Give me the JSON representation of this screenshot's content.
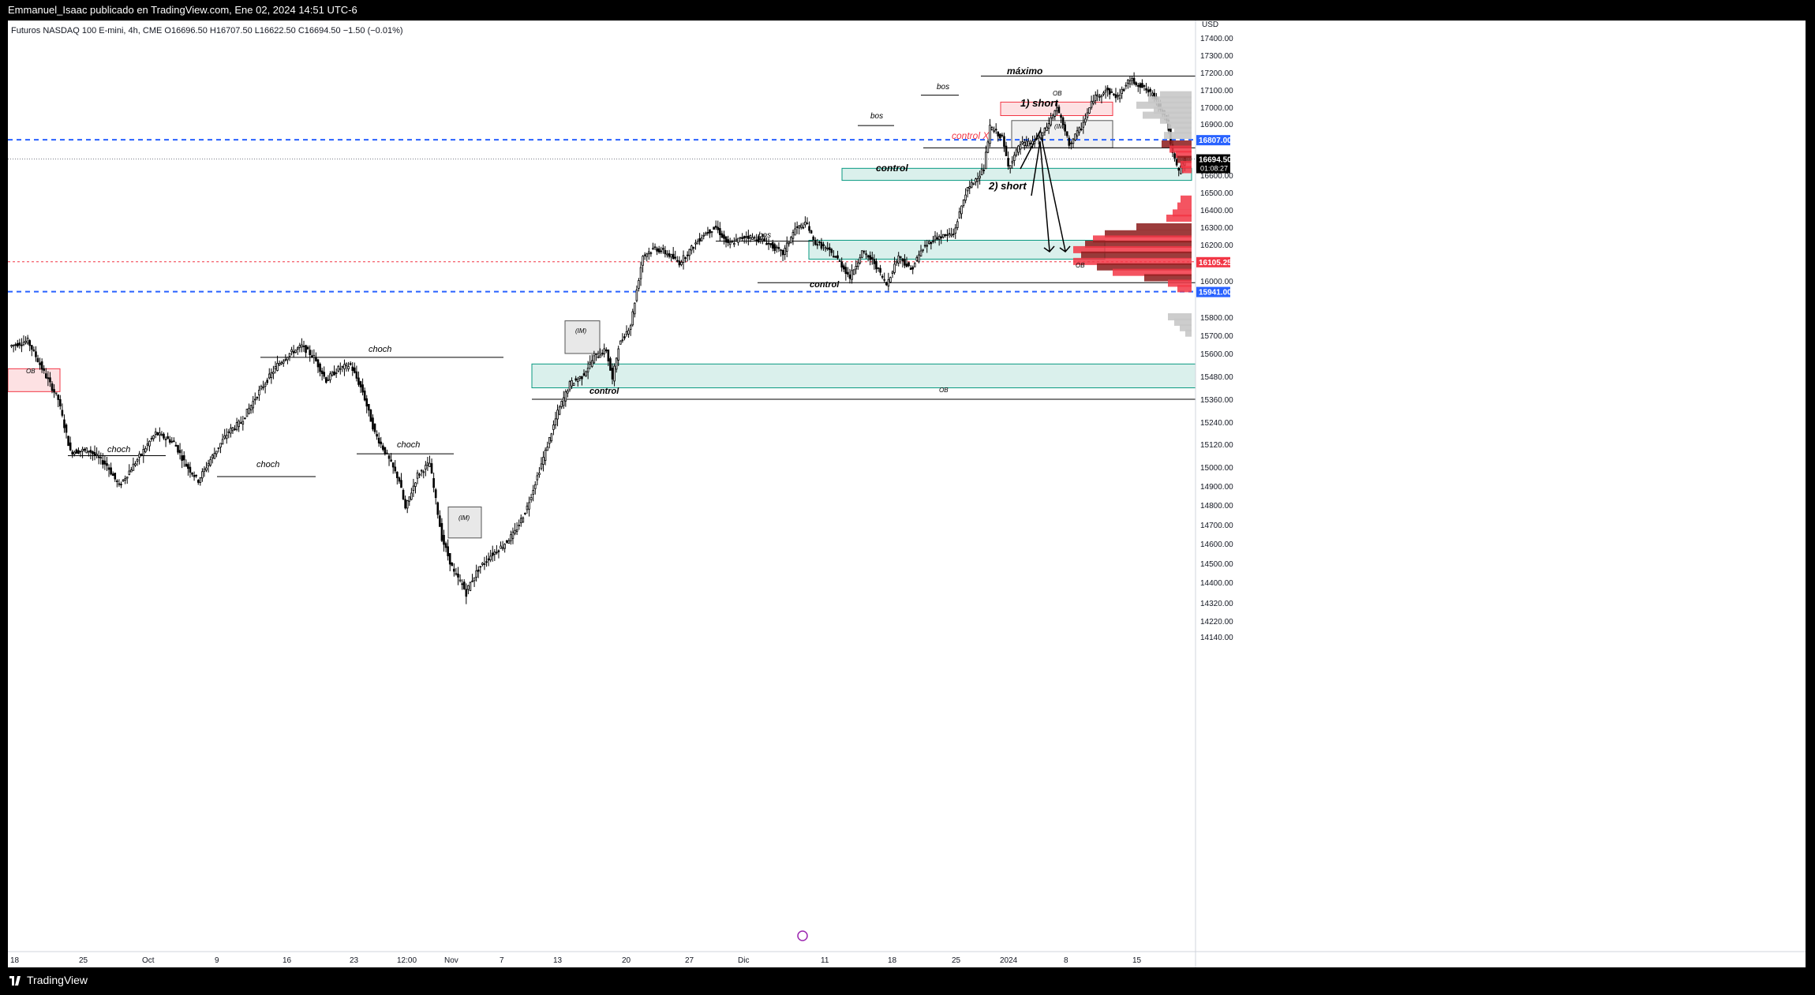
{
  "header": {
    "published_by": "Emmanuel_Isaac publicado en TradingView.com, Ene 02, 2024 14:51 UTC-6",
    "instrument": "Futuros NASDAQ 100 E-mini, 4h, CME",
    "ohlc": "O16696.50  H16707.50  L16622.50  C16694.50  −1.50 (−0.01%)"
  },
  "footer": {
    "brand": "TradingView"
  },
  "chart_data": {
    "type": "candlestick",
    "y_currency": "USD",
    "ylim": [
      14080,
      17520
    ],
    "y_ticks": [
      17400,
      17300,
      17200,
      17100,
      17000,
      16900,
      16600,
      16500,
      16400,
      16300,
      16200,
      16000,
      15800,
      15700,
      15600,
      15480,
      15360,
      15240,
      15120,
      15000,
      14900,
      14800,
      14700,
      14600,
      14500,
      14400,
      14320,
      14220,
      14140
    ],
    "y_tick_labels": [
      "17400.00",
      "17300.00",
      "17200.00",
      "17100.00",
      "17000.00",
      "16900.00",
      "16600.00",
      "16500.00",
      "16400.00",
      "16300.00",
      "16200.00",
      "16000.00",
      "15800.00",
      "15700.00",
      "15600.00",
      "15480.00",
      "15360.00",
      "15240.00",
      "15120.00",
      "15000.00",
      "14900.00",
      "14800.00",
      "14700.00",
      "14600.00",
      "14500.00",
      "14400.00",
      "14320.00",
      "14220.00",
      "14140.00"
    ],
    "x_labels": [
      "18",
      "25",
      "Oct",
      "9",
      "16",
      "23",
      "12:00",
      "Nov",
      "7",
      "13",
      "20",
      "27",
      "Dic",
      "11",
      "18",
      "25",
      "2024",
      "8",
      "15"
    ],
    "price_labels": [
      {
        "value": 16807.0,
        "text": "16807.00",
        "color": "#2962ff"
      },
      {
        "value": 16694.5,
        "text": "16694.50",
        "countdown": "01:08:27",
        "color": "#000000"
      },
      {
        "value": 16105.25,
        "text": "16105.25",
        "color": "#f23645"
      },
      {
        "value": 15941.0,
        "text": "15941.00",
        "color": "#2962ff"
      }
    ],
    "path": [
      [
        0,
        15640
      ],
      [
        3,
        15670
      ],
      [
        6,
        15480
      ],
      [
        8,
        15360
      ],
      [
        10,
        15080
      ],
      [
        13,
        15090
      ],
      [
        16,
        15010
      ],
      [
        18,
        14900
      ],
      [
        21,
        15040
      ],
      [
        24,
        15180
      ],
      [
        27,
        15130
      ],
      [
        29,
        15010
      ],
      [
        31,
        14930
      ],
      [
        33,
        15040
      ],
      [
        36,
        15190
      ],
      [
        38,
        15240
      ],
      [
        41,
        15400
      ],
      [
        44,
        15540
      ],
      [
        46,
        15600
      ],
      [
        48,
        15640
      ],
      [
        50,
        15580
      ],
      [
        52,
        15460
      ],
      [
        54,
        15520
      ],
      [
        56,
        15540
      ],
      [
        58,
        15400
      ],
      [
        60,
        15180
      ],
      [
        62,
        15060
      ],
      [
        64,
        14930
      ],
      [
        65,
        14780
      ],
      [
        67,
        14960
      ],
      [
        69,
        15020
      ],
      [
        71,
        14630
      ],
      [
        73,
        14450
      ],
      [
        75,
        14360
      ],
      [
        77,
        14470
      ],
      [
        79,
        14540
      ],
      [
        81,
        14590
      ],
      [
        83,
        14660
      ],
      [
        85,
        14790
      ],
      [
        88,
        15080
      ],
      [
        90,
        15290
      ],
      [
        92,
        15440
      ],
      [
        94,
        15480
      ],
      [
        96,
        15580
      ],
      [
        98,
        15620
      ],
      [
        99,
        15460
      ],
      [
        100,
        15640
      ],
      [
        102,
        15760
      ],
      [
        104,
        16140
      ],
      [
        106,
        16180
      ],
      [
        108,
        16150
      ],
      [
        110,
        16100
      ],
      [
        112,
        16180
      ],
      [
        114,
        16260
      ],
      [
        116,
        16300
      ],
      [
        118,
        16200
      ],
      [
        121,
        16250
      ],
      [
        124,
        16220
      ],
      [
        127,
        16150
      ],
      [
        129,
        16290
      ],
      [
        131,
        16320
      ],
      [
        132,
        16220
      ],
      [
        134,
        16180
      ],
      [
        136,
        16120
      ],
      [
        138,
        16020
      ],
      [
        140,
        16160
      ],
      [
        142,
        16100
      ],
      [
        144,
        15980
      ],
      [
        146,
        16140
      ],
      [
        148,
        16060
      ],
      [
        150,
        16180
      ],
      [
        152,
        16240
      ],
      [
        155,
        16260
      ],
      [
        157,
        16500
      ],
      [
        160,
        16640
      ],
      [
        161,
        16880
      ],
      [
        163,
        16820
      ],
      [
        164,
        16650
      ],
      [
        166,
        16780
      ],
      [
        168,
        16790
      ],
      [
        170,
        16860
      ],
      [
        172,
        17000
      ],
      [
        174,
        16780
      ],
      [
        176,
        16880
      ],
      [
        178,
        17050
      ],
      [
        180,
        17100
      ],
      [
        182,
        17060
      ],
      [
        184,
        17160
      ],
      [
        186,
        17120
      ],
      [
        188,
        17060
      ],
      [
        190,
        16930
      ],
      [
        191,
        16720
      ],
      [
        192,
        16620
      ],
      [
        193,
        16694
      ]
    ],
    "annotations": [
      {
        "text": "máximo",
        "kind": "label"
      },
      {
        "text": "1) short",
        "kind": "label"
      },
      {
        "text": "2) short",
        "kind": "label"
      },
      {
        "text": "bos",
        "kind": "label"
      },
      {
        "text": "bos",
        "kind": "label"
      },
      {
        "text": "bos",
        "kind": "label"
      },
      {
        "text": "control X",
        "kind": "label"
      },
      {
        "text": "control",
        "kind": "label"
      },
      {
        "text": "control",
        "kind": "label"
      },
      {
        "text": "control",
        "kind": "label"
      },
      {
        "text": "choch",
        "kind": "label"
      },
      {
        "text": "choch",
        "kind": "label"
      },
      {
        "text": "choch",
        "kind": "label"
      },
      {
        "text": "choch",
        "kind": "label"
      },
      {
        "text": "OB",
        "kind": "label"
      },
      {
        "text": "OB",
        "kind": "label"
      },
      {
        "text": "OB",
        "kind": "label"
      },
      {
        "text": "OB",
        "kind": "label"
      },
      {
        "text": "(IM)",
        "kind": "label"
      },
      {
        "text": "(IM)",
        "kind": "label"
      },
      {
        "text": "(IM)",
        "kind": "label"
      }
    ],
    "colors": {
      "up": "#ffffff",
      "down": "#000000",
      "ob_red": "#f23645",
      "ob_green": "#089981",
      "dash_blue": "#2962ff",
      "dash_red": "#f23645"
    }
  }
}
